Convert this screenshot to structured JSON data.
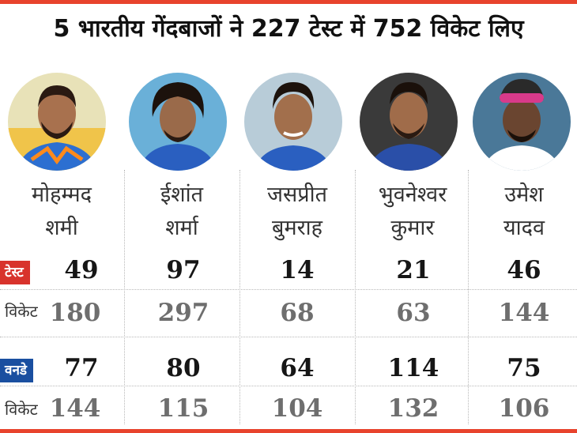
{
  "headline": "5 भारतीय गेंदबाजों ने 227 टेस्ट में 752 विकेट लिए",
  "row_labels": {
    "test": "टेस्ट",
    "odi": "वनडे",
    "wicket": "विकेट"
  },
  "colors": {
    "accent_red": "#e8432d",
    "test_badge": "#d8332c",
    "odi_badge": "#1a4fa0"
  },
  "players": [
    {
      "name_line1": "मोहम्मद",
      "name_line2": "शमी",
      "test_matches": "49",
      "test_wickets": "180",
      "odi_matches": "77",
      "odi_wickets": "144"
    },
    {
      "name_line1": "ईशांत",
      "name_line2": "शर्मा",
      "test_matches": "97",
      "test_wickets": "297",
      "odi_matches": "80",
      "odi_wickets": "115"
    },
    {
      "name_line1": "जसप्रीत",
      "name_line2": "बुमराह",
      "test_matches": "14",
      "test_wickets": "68",
      "odi_matches": "64",
      "odi_wickets": "104"
    },
    {
      "name_line1": "भुवनेश्वर",
      "name_line2": "कुमार",
      "test_matches": "21",
      "test_wickets": "63",
      "odi_matches": "114",
      "odi_wickets": "132"
    },
    {
      "name_line1": "उमेश",
      "name_line2": "यादव",
      "test_matches": "46",
      "test_wickets": "144",
      "odi_matches": "75",
      "odi_wickets": "106"
    }
  ]
}
